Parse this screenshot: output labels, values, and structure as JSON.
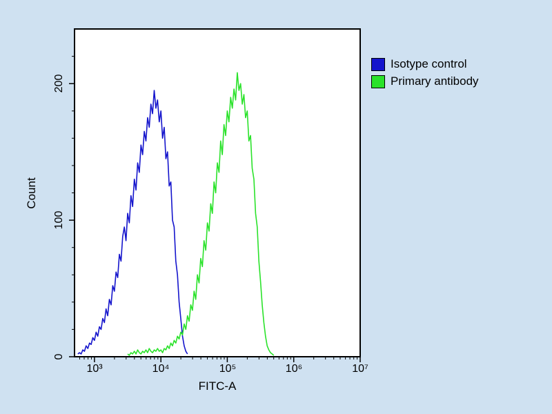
{
  "colors": {
    "background": "#cfe1f1",
    "plot_background": "#ffffff",
    "axis": "#000000",
    "isotype_blue": "#1414cc",
    "primary_green": "#2ae22a"
  },
  "chart_data": {
    "type": "line",
    "title": "",
    "xlabel": "FITC-A",
    "ylabel": "Count",
    "x_scale": "log10",
    "x_range_log10": [
      2.7,
      7.0
    ],
    "y_range": [
      0,
      240
    ],
    "grid": false,
    "legend_position": "top-right-outside",
    "x_ticks": [
      {
        "label": "10³",
        "exp": 3
      },
      {
        "label": "10⁴",
        "exp": 4
      },
      {
        "label": "10⁵",
        "exp": 5
      },
      {
        "label": "10⁶",
        "exp": 6
      },
      {
        "label": "10⁷",
        "exp": 7
      }
    ],
    "y_ticks": [
      {
        "label": "0",
        "value": 0
      },
      {
        "label": "100",
        "value": 100
      },
      {
        "label": "200",
        "value": 200
      }
    ],
    "y_minor_tick_step": 20,
    "legend": [
      {
        "label": "Isotype control",
        "color": "#1414cc"
      },
      {
        "label": "Primary antibody",
        "color": "#2ae22a"
      }
    ],
    "series": [
      {
        "name": "Isotype control",
        "color": "#1414cc",
        "log_x_start": 2.75,
        "log_x_step": 0.025,
        "counts": [
          2,
          3,
          2,
          5,
          4,
          8,
          6,
          10,
          9,
          14,
          12,
          18,
          15,
          22,
          20,
          28,
          25,
          35,
          30,
          42,
          38,
          52,
          48,
          62,
          58,
          75,
          70,
          88,
          95,
          85,
          105,
          98,
          118,
          110,
          130,
          122,
          142,
          135,
          155,
          148,
          165,
          158,
          175,
          168,
          185,
          178,
          195,
          182,
          188,
          172,
          180,
          160,
          168,
          145,
          150,
          125,
          128,
          100,
          95,
          70,
          60,
          40,
          28,
          15,
          8,
          4,
          2
        ]
      },
      {
        "name": "Primary antibody",
        "color": "#2ae22a",
        "log_x_start": 3.5,
        "log_x_step": 0.025,
        "counts": [
          2,
          1,
          3,
          2,
          4,
          2,
          5,
          3,
          2,
          4,
          3,
          5,
          3,
          6,
          4,
          3,
          5,
          4,
          6,
          4,
          5,
          3,
          6,
          5,
          8,
          6,
          10,
          8,
          12,
          10,
          15,
          13,
          18,
          16,
          24,
          20,
          30,
          26,
          38,
          34,
          48,
          42,
          60,
          54,
          72,
          66,
          85,
          78,
          98,
          92,
          112,
          105,
          128,
          120,
          142,
          135,
          158,
          148,
          170,
          162,
          180,
          172,
          190,
          182,
          196,
          188,
          208,
          195,
          200,
          185,
          192,
          175,
          180,
          158,
          162,
          138,
          130,
          105,
          95,
          70,
          55,
          38,
          25,
          15,
          8,
          5,
          3,
          2,
          1
        ]
      }
    ]
  }
}
